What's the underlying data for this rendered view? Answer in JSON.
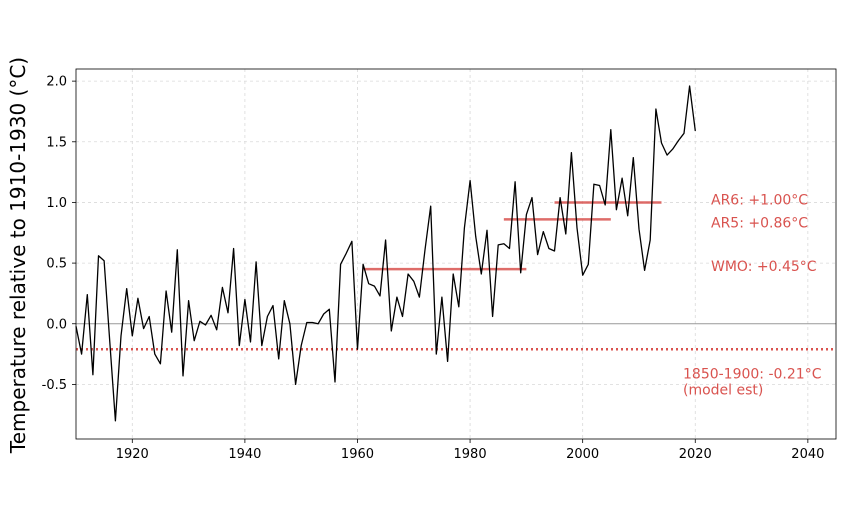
{
  "chart_data": {
    "type": "line",
    "title": "",
    "xlabel": "",
    "ylabel": "Temperature relative to 1910-1930 (°C)",
    "xlim": [
      1910,
      2045
    ],
    "ylim": [
      -0.95,
      2.1
    ],
    "xticks": [
      1920,
      1940,
      1960,
      1980,
      2000,
      2020,
      2040
    ],
    "yticks": [
      -0.5,
      0.0,
      0.5,
      1.0,
      1.5,
      2.0
    ],
    "xtick_labels": [
      "1920",
      "1940",
      "1960",
      "1980",
      "2000",
      "2020",
      "2040"
    ],
    "ytick_labels": [
      "-0.5",
      "0.0",
      "0.5",
      "1.0",
      "1.5",
      "2.0"
    ],
    "grid": true,
    "accent_color": "#d9534f",
    "series": [
      {
        "color": "#000000",
        "x": [
          1910,
          1911,
          1912,
          1913,
          1914,
          1915,
          1916,
          1917,
          1918,
          1919,
          1920,
          1921,
          1922,
          1923,
          1924,
          1925,
          1926,
          1927,
          1928,
          1929,
          1930,
          1931,
          1932,
          1933,
          1934,
          1935,
          1936,
          1937,
          1938,
          1939,
          1940,
          1941,
          1942,
          1943,
          1944,
          1945,
          1946,
          1947,
          1948,
          1949,
          1950,
          1951,
          1952,
          1953,
          1954,
          1955,
          1956,
          1957,
          1958,
          1959,
          1960,
          1961,
          1962,
          1963,
          1964,
          1965,
          1966,
          1967,
          1968,
          1969,
          1970,
          1971,
          1972,
          1973,
          1974,
          1975,
          1976,
          1977,
          1978,
          1979,
          1980,
          1981,
          1982,
          1983,
          1984,
          1985,
          1986,
          1987,
          1988,
          1989,
          1990,
          1991,
          1992,
          1993,
          1994,
          1995,
          1996,
          1997,
          1998,
          1999,
          2000,
          2001,
          2002,
          2003,
          2004,
          2005,
          2006,
          2007,
          2008,
          2009,
          2010,
          2011,
          2012,
          2013,
          2014,
          2015,
          2016,
          2017,
          2018,
          2019,
          2020
        ],
        "y": [
          -0.02,
          -0.25,
          0.24,
          -0.42,
          0.56,
          0.52,
          -0.15,
          -0.8,
          -0.1,
          0.29,
          -0.1,
          0.21,
          -0.04,
          0.06,
          -0.25,
          -0.33,
          0.27,
          -0.07,
          0.61,
          -0.43,
          0.19,
          -0.14,
          0.02,
          -0.01,
          0.07,
          -0.05,
          0.3,
          0.09,
          0.62,
          -0.18,
          0.2,
          -0.15,
          0.51,
          -0.18,
          0.06,
          0.15,
          -0.29,
          0.19,
          0.0,
          -0.5,
          -0.18,
          0.01,
          0.01,
          0.0,
          0.08,
          0.12,
          -0.48,
          0.49,
          0.58,
          0.68,
          -0.21,
          0.49,
          0.33,
          0.31,
          0.23,
          0.69,
          -0.06,
          0.22,
          0.06,
          0.41,
          0.35,
          0.22,
          0.61,
          0.97,
          -0.25,
          0.22,
          -0.31,
          0.41,
          0.14,
          0.79,
          1.18,
          0.72,
          0.41,
          0.77,
          0.06,
          0.65,
          0.66,
          0.62,
          1.17,
          0.42,
          0.9,
          1.04,
          0.57,
          0.76,
          0.62,
          0.6,
          1.04,
          0.74,
          1.41,
          0.79,
          0.4,
          0.49,
          1.15,
          1.14,
          0.98,
          1.6,
          0.94,
          1.2,
          0.89,
          1.37,
          0.78,
          0.44,
          0.69,
          1.77,
          1.49,
          1.39,
          1.44,
          1.51,
          1.57,
          1.96,
          1.59
        ]
      }
    ],
    "reference_lines": [
      {
        "label": "AR6: +1.00°C",
        "x_start": 1995,
        "x_end": 2014,
        "y": 1.0
      },
      {
        "label": "AR5: +0.86°C",
        "x_start": 1986,
        "x_end": 2005,
        "y": 0.86
      },
      {
        "label": "WMO: +0.45°C",
        "x_start": 1961,
        "x_end": 1990,
        "y": 0.45
      }
    ],
    "baseline": {
      "label_line1": "1850-1900: -0.21°C",
      "label_line2": "(model est)",
      "y": -0.21,
      "style": "dotted"
    }
  }
}
